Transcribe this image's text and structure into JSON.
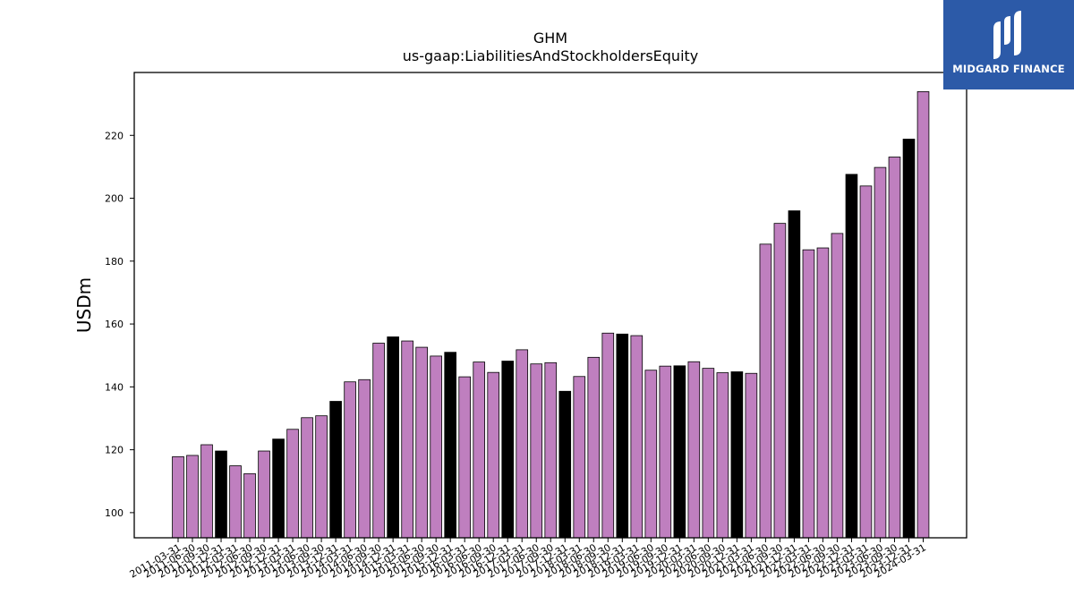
{
  "chart_data": {
    "type": "bar",
    "title": "GHM",
    "subtitle": "us-gaap:LiabilitiesAndStockholdersEquity",
    "xlabel": "",
    "ylabel": "USDm",
    "ylim": [
      92,
      240
    ],
    "yticks": [
      100,
      120,
      140,
      160,
      180,
      200,
      220
    ],
    "grid": false,
    "colors": {
      "bar": "#bf7fbf",
      "highlight": "#000000",
      "edge": "#000000"
    },
    "categories": [
      "2011-03-31",
      "2011-06-30",
      "2011-09-30",
      "2011-12-31",
      "2012-03-31",
      "2012-06-30",
      "2012-09-30",
      "2012-12-31",
      "2013-03-31",
      "2013-06-30",
      "2013-09-30",
      "2013-12-31",
      "2014-03-31",
      "2014-06-30",
      "2014-09-30",
      "2014-12-31",
      "2015-03-31",
      "2015-06-30",
      "2015-09-30",
      "2015-12-31",
      "2016-03-31",
      "2016-06-30",
      "2016-09-30",
      "2016-12-31",
      "2017-03-31",
      "2017-06-30",
      "2017-09-30",
      "2017-12-31",
      "2018-03-31",
      "2018-06-30",
      "2018-09-30",
      "2018-12-31",
      "2019-03-31",
      "2019-06-30",
      "2019-09-30",
      "2019-12-31",
      "2020-03-31",
      "2020-06-30",
      "2020-09-30",
      "2020-12-31",
      "2021-03-31",
      "2021-06-30",
      "2021-09-30",
      "2021-12-31",
      "2022-03-31",
      "2022-06-30",
      "2022-09-30",
      "2022-12-31",
      "2023-03-31",
      "2023-06-30",
      "2023-09-30",
      "2023-12-31",
      "2024-03-31"
    ],
    "values": [
      117.8,
      118.2,
      121.6,
      119.6,
      114.9,
      112.4,
      119.6,
      123.4,
      126.5,
      130.2,
      130.8,
      135.4,
      141.6,
      142.3,
      153.9,
      155.9,
      154.6,
      152.6,
      149.8,
      151.0,
      143.2,
      147.9,
      144.6,
      148.2,
      151.8,
      147.3,
      147.7,
      138.6,
      143.3,
      149.4,
      157.1,
      156.8,
      156.3,
      145.3,
      146.6,
      146.7,
      148.0,
      145.9,
      144.5,
      144.8,
      144.3,
      185.4,
      192.0,
      196.0,
      183.6,
      184.2,
      188.8,
      207.6,
      203.9,
      209.8,
      213.1,
      218.8,
      233.9
    ],
    "highlighted": [
      false,
      false,
      false,
      true,
      false,
      false,
      false,
      true,
      false,
      false,
      false,
      true,
      false,
      false,
      false,
      true,
      false,
      false,
      false,
      true,
      false,
      false,
      false,
      true,
      false,
      false,
      false,
      true,
      false,
      false,
      false,
      true,
      false,
      false,
      false,
      true,
      false,
      false,
      false,
      true,
      false,
      false,
      false,
      true,
      false,
      false,
      false,
      true,
      false,
      false,
      false,
      true,
      false
    ]
  },
  "logo": {
    "text": "MIDGARD FINANCE"
  }
}
